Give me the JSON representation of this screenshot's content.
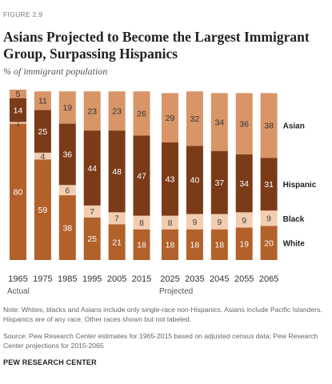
{
  "figure_label": "FIGURE 2.9",
  "title": "Asians Projected to Become the Largest Immigrant Group, Surpassing Hispanics",
  "subtitle": "% of immigrant population",
  "note": "Note: Whites, blacks and Asians include only single-race non-Hispanics. Asians include Pacific Islanders. Hispanics are of any race. Other races shown but not labeled.",
  "source": "Source: Pew Research Center estimates for 1965-2015 based on adjusted census data; Pew Research Center projections for 2015-2065",
  "credit": "PEW RESEARCH CENTER",
  "chart_data": {
    "type": "bar",
    "stacked": true,
    "groups": [
      {
        "label": "Actual",
        "categories": [
          "1965",
          "1975",
          "1985",
          "1995",
          "2005",
          "2015"
        ]
      },
      {
        "label": "Projected",
        "categories": [
          "2025",
          "2035",
          "2045",
          "2055",
          "2065"
        ]
      }
    ],
    "categories": [
      "1965",
      "1975",
      "1985",
      "1995",
      "2005",
      "2015",
      "2025",
      "2035",
      "2045",
      "2055",
      "2065"
    ],
    "series": [
      {
        "name": "White",
        "color": "#b2612b",
        "label_color": "#ffffff",
        "values": [
          80,
          59,
          38,
          25,
          21,
          18,
          18,
          18,
          18,
          19,
          20
        ]
      },
      {
        "name": "Black",
        "color": "#f3cdaf",
        "label_color": "#444444",
        "values": [
          1,
          4,
          6,
          7,
          7,
          8,
          8,
          9,
          9,
          9,
          9
        ]
      },
      {
        "name": "Hispanic",
        "color": "#7b3b18",
        "label_color": "#ffffff",
        "values": [
          14,
          25,
          36,
          44,
          48,
          47,
          43,
          40,
          37,
          34,
          31
        ]
      },
      {
        "name": "Asian",
        "color": "#d89568",
        "label_color": "#333333",
        "values": [
          5,
          11,
          19,
          23,
          23,
          26,
          29,
          32,
          34,
          36,
          38
        ]
      },
      {
        "name": "",
        "color": "#ffffff",
        "label_color": "#333333",
        "values": [
          0,
          1,
          1,
          1,
          1,
          1,
          2,
          1,
          2,
          2,
          2
        ]
      }
    ],
    "legend_labels": [
      "Asian",
      "Hispanic",
      "Black",
      "White"
    ],
    "legend_placement": "right",
    "ylim": [
      0,
      100
    ],
    "grid": false
  }
}
